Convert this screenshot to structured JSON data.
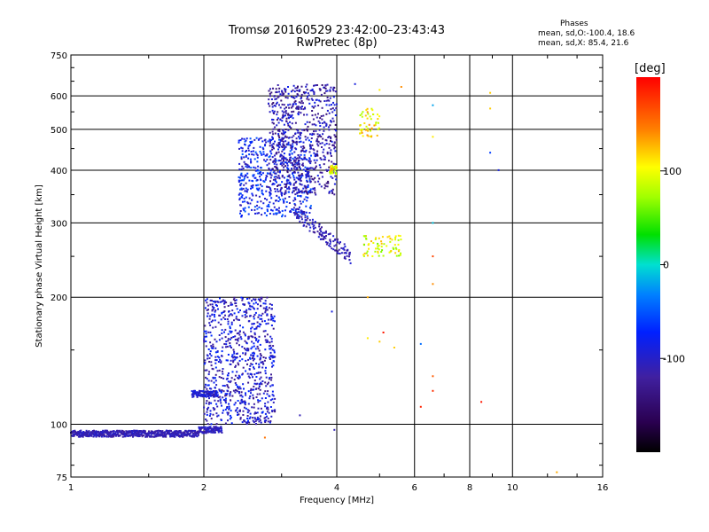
{
  "title_line1": "Tromsø 20160529 23:42:00–23:43:43",
  "title_line2": "RwPretec (8p)",
  "phases": {
    "heading": "Phases",
    "line_o": "mean, sd,O:-100.4, 18.6",
    "line_x": "mean, sd,X: 85.4, 21.6"
  },
  "colorbar": {
    "label": "[deg]",
    "ticks": [
      {
        "value": 100,
        "label": "100"
      },
      {
        "value": 0,
        "label": "0"
      },
      {
        "value": -100,
        "label": "-100"
      }
    ],
    "range": [
      -200,
      200
    ]
  },
  "chart_data": {
    "type": "scatter",
    "xlabel": "Frequency [MHz]",
    "ylabel": "Stationary phase Virtual Height [km]",
    "xscale": "log",
    "yscale": "log",
    "xlim": [
      1,
      16
    ],
    "ylim": [
      75,
      750
    ],
    "xticks": [
      1,
      2,
      4,
      6,
      8,
      10,
      16
    ],
    "yticks": [
      75,
      100,
      200,
      300,
      400,
      500,
      600,
      750
    ],
    "grid": true,
    "color_encoding": "phase [deg]",
    "clusters": [
      {
        "name": "",
        "f_range": [
          1.0,
          1.95
        ],
        "h_center": 95,
        "phase": -110,
        "kind": "band"
      },
      {
        "name": "",
        "f_range": [
          1.95,
          2.2
        ],
        "h_center": 97,
        "phase": -105,
        "kind": "band"
      },
      {
        "name": "",
        "f_range": [
          1.88,
          2.15
        ],
        "h_center": 118,
        "phase": -95,
        "kind": "band"
      },
      {
        "name": "",
        "f_range": [
          2.0,
          2.9
        ],
        "h_range": [
          100,
          200
        ],
        "phase": -100,
        "kind": "cloud"
      },
      {
        "name": "",
        "f_range": [
          2.4,
          3.5
        ],
        "h_range": [
          310,
          480
        ],
        "phase": -80,
        "kind": "cloud"
      },
      {
        "name": "",
        "f_range": [
          2.8,
          4.0
        ],
        "h_range": [
          350,
          640
        ],
        "phase": -115,
        "kind": "cloud"
      },
      {
        "name": "",
        "f_range": [
          3.2,
          4.3
        ],
        "h_range": [
          250,
          320
        ],
        "phase": -110,
        "kind": "trail"
      },
      {
        "name": "",
        "f_range": [
          4.6,
          5.6
        ],
        "h_range": [
          250,
          280
        ],
        "phase": 95,
        "kind": "cloud"
      },
      {
        "name": "",
        "f_range": [
          4.5,
          5.0
        ],
        "h_range": [
          480,
          560
        ],
        "phase": 110,
        "kind": "cloud"
      },
      {
        "name": "",
        "f_range": [
          3.85,
          4.0
        ],
        "h_range": [
          390,
          410
        ],
        "phase": 105,
        "kind": "cloud"
      }
    ],
    "isolated_points": [
      {
        "x": 6.6,
        "y": 570,
        "phase": -20
      },
      {
        "x": 6.6,
        "y": 480,
        "phase": 110
      },
      {
        "x": 8.9,
        "y": 610,
        "phase": 120
      },
      {
        "x": 8.9,
        "y": 560,
        "phase": 120
      },
      {
        "x": 8.9,
        "y": 440,
        "phase": -60
      },
      {
        "x": 9.3,
        "y": 400,
        "phase": -90
      },
      {
        "x": 6.6,
        "y": 300,
        "phase": -10
      },
      {
        "x": 6.6,
        "y": 250,
        "phase": 170
      },
      {
        "x": 6.6,
        "y": 215,
        "phase": 140
      },
      {
        "x": 6.2,
        "y": 155,
        "phase": -40
      },
      {
        "x": 6.6,
        "y": 130,
        "phase": 160
      },
      {
        "x": 6.6,
        "y": 120,
        "phase": 180
      },
      {
        "x": 6.2,
        "y": 110,
        "phase": 185
      },
      {
        "x": 8.5,
        "y": 113,
        "phase": 190
      },
      {
        "x": 5.1,
        "y": 165,
        "phase": 190
      },
      {
        "x": 4.7,
        "y": 160,
        "phase": 110
      },
      {
        "x": 5.0,
        "y": 157,
        "phase": 120
      },
      {
        "x": 5.4,
        "y": 152,
        "phase": 120
      },
      {
        "x": 3.9,
        "y": 185,
        "phase": -90
      },
      {
        "x": 3.3,
        "y": 105,
        "phase": -110
      },
      {
        "x": 3.95,
        "y": 97,
        "phase": -110
      },
      {
        "x": 2.75,
        "y": 93,
        "phase": 150
      },
      {
        "x": 12.6,
        "y": 77,
        "phase": 130
      },
      {
        "x": 4.4,
        "y": 640,
        "phase": -90
      },
      {
        "x": 5.0,
        "y": 620,
        "phase": 110
      },
      {
        "x": 5.6,
        "y": 630,
        "phase": 140
      },
      {
        "x": 4.7,
        "y": 200,
        "phase": 130
      }
    ]
  }
}
